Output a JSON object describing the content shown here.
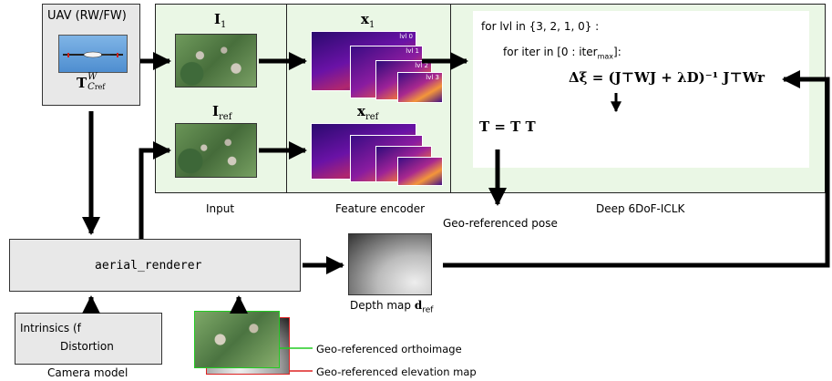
{
  "uav": {
    "title": "UAV (RW/FW)",
    "pose_main": "T",
    "pose_sub": "C",
    "pose_sup": "W",
    "pose_sub_small": "ref"
  },
  "input": {
    "label": "Input",
    "img1_main": "I",
    "img1_sub": "1",
    "imgref_main": "I",
    "imgref_sub": "ref"
  },
  "encoder": {
    "label": "Feature encoder",
    "feat1_main": "x",
    "feat1_sub": "1",
    "featref_main": "x",
    "featref_sub": "ref",
    "levels": [
      "lvl 0",
      "lvl 1",
      "lvl 2",
      "lvl 3"
    ]
  },
  "iclk": {
    "label": "Deep 6DoF-ICLK",
    "line1": "for lvl in {3, 2, 1, 0} :",
    "line2": "for iter in [0 : iter",
    "line2_sub": "max",
    "line2_end": "]:",
    "update_eq": "Δξ = (J⊤WJ + λD)⁻¹ J⊤Wr",
    "pose_eq": "T = T T"
  },
  "geo_pose_label": "Geo-referenced pose",
  "renderer": {
    "label": "aerial_renderer"
  },
  "depth": {
    "label": "Depth map",
    "sym": "d",
    "sub": "ref"
  },
  "camera": {
    "line1": "Intrinsics (f",
    "line2": "Distortion",
    "label": "Camera model"
  },
  "ortho_label": "Geo-referenced orthoimage",
  "elev_label": "Geo-referenced elevation map",
  "colors": {
    "green_panel": "#eaf7e5",
    "renderer_bg": "#e8e8e8",
    "ortho_line": "#22cc22",
    "elev_line": "#dd2222"
  }
}
